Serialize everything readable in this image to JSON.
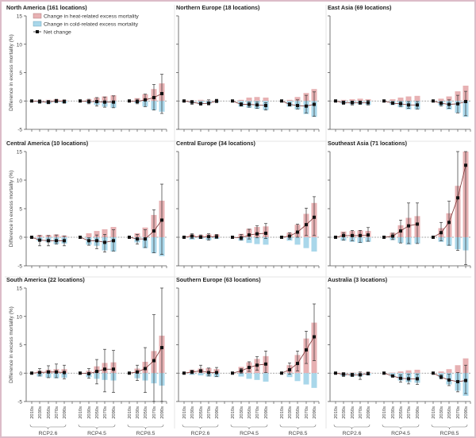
{
  "chart_data": {
    "type": "bar",
    "ylabel": "Difference in excess mortality (%)",
    "ylim": [
      -5,
      15
    ],
    "yticks": [
      -5,
      0,
      5,
      10,
      15
    ],
    "decades": [
      "2010s",
      "2030s",
      "2050s",
      "2070s",
      "2090s"
    ],
    "scenarios": [
      "RCP2.6",
      "RCP4.5",
      "RCP8.5"
    ],
    "legend": {
      "position": "top-left",
      "heat": "Change in heat-related excess mortality",
      "cold": "Change in cold-related excess mortality",
      "net": "Net change"
    },
    "colors": {
      "heat": "#e7b1b3",
      "cold": "#a9d7ea",
      "net": "#111111",
      "net_line": "#7a3535"
    },
    "panels": [
      {
        "title": "North America (161 locations)",
        "data": [
          {
            "heat": [
              0,
              0.1,
              0.2,
              0.3,
              0.2
            ],
            "cold": [
              0,
              -0.3,
              -0.5,
              -0.3,
              -0.4
            ],
            "net": [
              0,
              -0.1,
              -0.2,
              0,
              -0.1
            ],
            "ci_low": [
              0,
              -0.4,
              -0.5,
              -0.3,
              -0.4
            ],
            "ci_high": [
              0,
              0.2,
              0.1,
              0.3,
              0.2
            ]
          },
          {
            "heat": [
              0,
              0.3,
              0.6,
              0.8,
              1.0
            ],
            "cold": [
              0,
              -0.4,
              -0.7,
              -1.0,
              -1.2
            ],
            "net": [
              0,
              -0.1,
              -0.1,
              -0.2,
              -0.2
            ],
            "ci_low": [
              0,
              -0.5,
              -0.9,
              -1.1,
              -1.2
            ],
            "ci_high": [
              0,
              0.3,
              0.6,
              0.7,
              0.9
            ]
          },
          {
            "heat": [
              0,
              0.5,
              1.2,
              2.1,
              3.1
            ],
            "cold": [
              0,
              -0.4,
              -1.0,
              -1.6,
              -1.9
            ],
            "net": [
              0,
              -0.1,
              0.2,
              0.6,
              1.3
            ],
            "ci_low": [
              0,
              -0.5,
              -1.0,
              -1.6,
              -2.2
            ],
            "ci_high": [
              0,
              0.3,
              1.2,
              2.9,
              4.7
            ]
          }
        ]
      },
      {
        "title": "Northern Europe (18 locations)",
        "data": [
          {
            "heat": [
              0,
              0.1,
              0.2,
              0.1,
              0.1
            ],
            "cold": [
              0,
              -0.4,
              -0.6,
              -0.5,
              -0.2
            ],
            "net": [
              0,
              -0.2,
              -0.5,
              -0.4,
              0
            ],
            "ci_low": [
              0,
              -0.6,
              -0.7,
              -0.7,
              -0.3
            ],
            "ci_high": [
              0,
              0.1,
              -0.2,
              0.2,
              0.3
            ]
          },
          {
            "heat": [
              0,
              0.2,
              0.6,
              0.7,
              0.6
            ],
            "cold": [
              0,
              -1.0,
              -1.2,
              -1.4,
              -1.6
            ],
            "net": [
              0,
              -0.6,
              -0.6,
              -0.7,
              -0.8
            ],
            "ci_low": [
              0,
              -0.9,
              -1.1,
              -1.3,
              -1.6
            ],
            "ci_high": [
              0,
              -0.3,
              -0.2,
              -0.2,
              -0.3
            ]
          },
          {
            "heat": [
              0,
              0.2,
              0.7,
              1.4,
              2.1
            ],
            "cold": [
              0,
              -1.0,
              -1.5,
              -2.3,
              -2.8
            ],
            "net": [
              0,
              -0.6,
              -0.8,
              -0.9,
              -0.6
            ],
            "ci_low": [
              0,
              -0.9,
              -1.4,
              -2.1,
              -2.7
            ],
            "ci_high": [
              0,
              -0.3,
              0.2,
              1.0,
              1.6
            ]
          }
        ]
      },
      {
        "title": "East Asia (69 locations)",
        "data": [
          {
            "heat": [
              0,
              0.2,
              0.3,
              0.4,
              0.3
            ],
            "cold": [
              0,
              -0.5,
              -0.6,
              -0.6,
              -0.7
            ],
            "net": [
              0,
              -0.3,
              -0.3,
              -0.3,
              -0.3
            ],
            "ci_low": [
              0,
              -0.6,
              -0.7,
              -0.6,
              -0.7
            ],
            "ci_high": [
              0,
              0,
              0,
              0,
              0.1
            ]
          },
          {
            "heat": [
              0,
              0.3,
              0.6,
              0.8,
              0.9
            ],
            "cold": [
              0,
              -0.7,
              -1.1,
              -1.5,
              -1.5
            ],
            "net": [
              0,
              -0.4,
              -0.5,
              -0.7,
              -0.7
            ],
            "ci_low": [
              0,
              -0.6,
              -1.0,
              -1.3,
              -1.4
            ],
            "ci_high": [
              0,
              -0.1,
              -0.1,
              -0.1,
              -0.1
            ]
          },
          {
            "heat": [
              0,
              0.4,
              0.8,
              1.7,
              2.7
            ],
            "cold": [
              0,
              -0.8,
              -1.5,
              -2.1,
              -2.8
            ],
            "net": [
              0,
              -0.4,
              -0.6,
              -0.5,
              -0.1
            ],
            "ci_low": [
              0,
              -0.9,
              -1.3,
              -2.1,
              -2.6
            ],
            "ci_high": [
              0,
              -0.1,
              0.2,
              1.0,
              1.7
            ]
          }
        ]
      },
      {
        "title": "Central America (10 locations)",
        "data": [
          {
            "heat": [
              0,
              0.4,
              0.4,
              0.5,
              0.3
            ],
            "cold": [
              0,
              -0.7,
              -0.9,
              -1.2,
              -1.1
            ],
            "net": [
              0,
              -0.5,
              -0.6,
              -0.6,
              -0.6
            ],
            "ci_low": [
              0,
              -1.5,
              -1.5,
              -1.2,
              -1.5
            ],
            "ci_high": [
              0,
              0.3,
              0.3,
              0.4,
              0.2
            ]
          },
          {
            "heat": [
              0,
              0.7,
              1.1,
              1.4,
              1.8
            ],
            "cold": [
              0,
              -1.3,
              -1.5,
              -2.3,
              -2.5
            ],
            "net": [
              0,
              -0.6,
              -0.6,
              -0.9,
              -0.6
            ],
            "ci_low": [
              0,
              -1.4,
              -2.0,
              -2.6,
              -2.4
            ],
            "ci_high": [
              0,
              -0.1,
              0.4,
              0.5,
              1.3
            ]
          },
          {
            "heat": [
              0,
              0.7,
              1.7,
              3.9,
              6.4
            ],
            "cold": [
              0,
              -0.9,
              -1.9,
              -2.8,
              -3.3
            ],
            "net": [
              0,
              -0.3,
              -0.3,
              1.1,
              3.0
            ],
            "ci_low": [
              0,
              -1.2,
              -1.8,
              -2.7,
              -3.0
            ],
            "ci_high": [
              0,
              0.5,
              1.3,
              4.8,
              9.3
            ]
          }
        ]
      },
      {
        "title": "Central Europe (34 locations)",
        "data": [
          {
            "heat": [
              0,
              0.5,
              0.4,
              0.5,
              0.5
            ],
            "cold": [
              0,
              -0.4,
              -0.3,
              -0.5,
              -0.3
            ],
            "net": [
              0,
              0.2,
              0,
              0.1,
              0.1
            ],
            "ci_low": [
              0,
              -0.2,
              -0.2,
              -0.5,
              -0.2
            ],
            "ci_high": [
              0,
              0.6,
              0.4,
              0.6,
              0.5
            ]
          },
          {
            "heat": [
              0,
              0.6,
              1.5,
              1.8,
              1.9
            ],
            "cold": [
              0,
              -0.6,
              -1.0,
              -1.2,
              -1.3
            ],
            "net": [
              0,
              -0.1,
              0.4,
              0.6,
              0.7
            ],
            "ci_low": [
              0,
              -0.5,
              -0.3,
              -0.1,
              -0.2
            ],
            "ci_high": [
              0,
              0.5,
              1.4,
              2.0,
              2.4
            ]
          },
          {
            "heat": [
              0,
              0.8,
              2.2,
              4.1,
              6.0
            ],
            "cold": [
              0,
              -0.6,
              -1.3,
              -1.9,
              -2.5
            ],
            "net": [
              0,
              0.2,
              0.9,
              2.2,
              3.5
            ],
            "ci_low": [
              0,
              -0.3,
              0,
              0.3,
              0.3
            ],
            "ci_high": [
              0,
              0.8,
              2.3,
              5.1,
              7.1
            ]
          }
        ]
      },
      {
        "title": "Southeast Asia (71 locations)",
        "data": [
          {
            "heat": [
              0,
              1.0,
              1.1,
              1.2,
              1.1
            ],
            "cold": [
              0,
              -0.6,
              -0.8,
              -1.0,
              -0.8
            ],
            "net": [
              0,
              0.3,
              0.3,
              0.3,
              0.4
            ],
            "ci_low": [
              0,
              -0.5,
              -0.6,
              -0.9,
              -0.7
            ],
            "ci_high": [
              0,
              0.8,
              1.2,
              1.2,
              1.7
            ]
          },
          {
            "heat": [
              0,
              0.8,
              2.1,
              3.4,
              3.7
            ],
            "cold": [
              0,
              -0.5,
              -1.0,
              -1.3,
              -1.1
            ],
            "net": [
              0,
              0.2,
              1.1,
              2.0,
              2.3
            ],
            "ci_low": [
              0,
              -0.4,
              -1.0,
              -1.1,
              -1.1
            ],
            "ci_high": [
              0,
              0.7,
              3.0,
              6.0,
              6.0
            ]
          },
          {
            "heat": [
              0,
              1.6,
              4.2,
              9.0,
              15
            ],
            "cold": [
              0,
              -0.8,
              -1.5,
              -2.1,
              -2.3
            ],
            "net": [
              0,
              0.8,
              2.6,
              6.9,
              12.6
            ],
            "ci_low": [
              0,
              -0.6,
              -1.4,
              -2.3,
              -4.8
            ],
            "ci_high": [
              0,
              2.6,
              6.3,
              15,
              15
            ]
          }
        ]
      },
      {
        "title": "South America (22 locations)",
        "data": [
          {
            "heat": [
              0,
              0.4,
              0.6,
              0.7,
              0.7
            ],
            "cold": [
              0,
              -0.6,
              -0.8,
              -0.9,
              -0.8
            ],
            "net": [
              0,
              0.1,
              0.2,
              0.2,
              0.1
            ],
            "ci_low": [
              0,
              -0.5,
              -0.8,
              -0.8,
              -1.0
            ],
            "ci_high": [
              0,
              0.8,
              1.3,
              1.6,
              1.4
            ]
          },
          {
            "heat": [
              0,
              0.4,
              1.2,
              1.8,
              1.9
            ],
            "cold": [
              0,
              -0.7,
              -1.0,
              -1.2,
              -1.3
            ],
            "net": [
              0,
              -0.1,
              0.3,
              0.7,
              0.7
            ],
            "ci_low": [
              0,
              -0.9,
              -1.9,
              -3.3,
              -3.4
            ],
            "ci_high": [
              0,
              0.8,
              2.4,
              4.2,
              4.0
            ]
          },
          {
            "heat": [
              0,
              0.8,
              2.0,
              3.9,
              6.6
            ],
            "cold": [
              0,
              -0.9,
              -1.3,
              -1.8,
              -2.2
            ],
            "net": [
              0,
              0.2,
              0.8,
              2.2,
              4.5
            ],
            "ci_low": [
              0,
              -1.3,
              -3.4,
              -5,
              -5
            ],
            "ci_high": [
              0,
              1.4,
              4.5,
              10.3,
              15
            ]
          }
        ]
      },
      {
        "title": "Southern Europe (63 locations)",
        "data": [
          {
            "heat": [
              0,
              0.6,
              0.8,
              0.9,
              0.7
            ],
            "cold": [
              0,
              -0.3,
              -0.4,
              -0.6,
              -0.7
            ],
            "net": [
              0,
              0.2,
              0.4,
              0.1,
              0.1
            ],
            "ci_low": [
              0,
              -0.1,
              0.1,
              -0.5,
              -0.6
            ],
            "ci_high": [
              0,
              0.5,
              1.4,
              0.9,
              1.0
            ]
          },
          {
            "heat": [
              0,
              1.1,
              1.9,
              2.5,
              3.0
            ],
            "cold": [
              0,
              -0.6,
              -1.0,
              -1.2,
              -1.5
            ],
            "net": [
              0,
              0.4,
              1.0,
              1.4,
              1.6
            ],
            "ci_low": [
              0,
              0,
              0.3,
              0.5,
              0.1
            ],
            "ci_high": [
              0,
              0.8,
              2.0,
              2.9,
              3.9
            ]
          },
          {
            "heat": [
              0,
              1.4,
              3.2,
              6.1,
              8.9
            ],
            "cold": [
              0,
              -0.7,
              -1.4,
              -2.0,
              -2.6
            ],
            "net": [
              0,
              0.6,
              1.7,
              4.1,
              6.4
            ],
            "ci_low": [
              0,
              -0.2,
              0.4,
              1.7,
              2.2
            ],
            "ci_high": [
              0,
              1.8,
              3.9,
              7.4,
              12.2
            ]
          }
        ]
      },
      {
        "title": "Australia (3 locations)",
        "data": [
          {
            "heat": [
              0,
              0.1,
              0.1,
              0.1,
              0.2
            ],
            "cold": [
              0,
              -0.5,
              -0.6,
              -0.6,
              -0.4
            ],
            "net": [
              0,
              -0.2,
              -0.3,
              -0.3,
              -0.1
            ],
            "ci_low": [
              0,
              -0.6,
              -0.6,
              -1.1,
              -0.3
            ],
            "ci_high": [
              0,
              0.1,
              0.0,
              0.2,
              0.2
            ]
          },
          {
            "heat": [
              0,
              0.1,
              0.3,
              0.5,
              0.6
            ],
            "cold": [
              0,
              -0.7,
              -1.3,
              -1.6,
              -1.7
            ],
            "net": [
              0,
              -0.5,
              -0.9,
              -1.0,
              -1.0
            ],
            "ci_low": [
              0,
              -0.6,
              -1.6,
              -1.9,
              -2.0
            ],
            "ci_high": [
              0,
              -0.4,
              -0.3,
              -0.2,
              -0.2
            ]
          },
          {
            "heat": [
              0,
              0.3,
              0.7,
              1.4,
              2.6
            ],
            "cold": [
              0,
              -0.8,
              -2.0,
              -3.1,
              -4.0
            ],
            "net": [
              0,
              -0.7,
              -1.2,
              -1.5,
              -1.3
            ],
            "ci_low": [
              0,
              -1.0,
              -2.2,
              -3.3,
              -3.6
            ],
            "ci_high": [
              0,
              -0.3,
              -0.2,
              0.1,
              1.4
            ]
          }
        ]
      }
    ]
  }
}
